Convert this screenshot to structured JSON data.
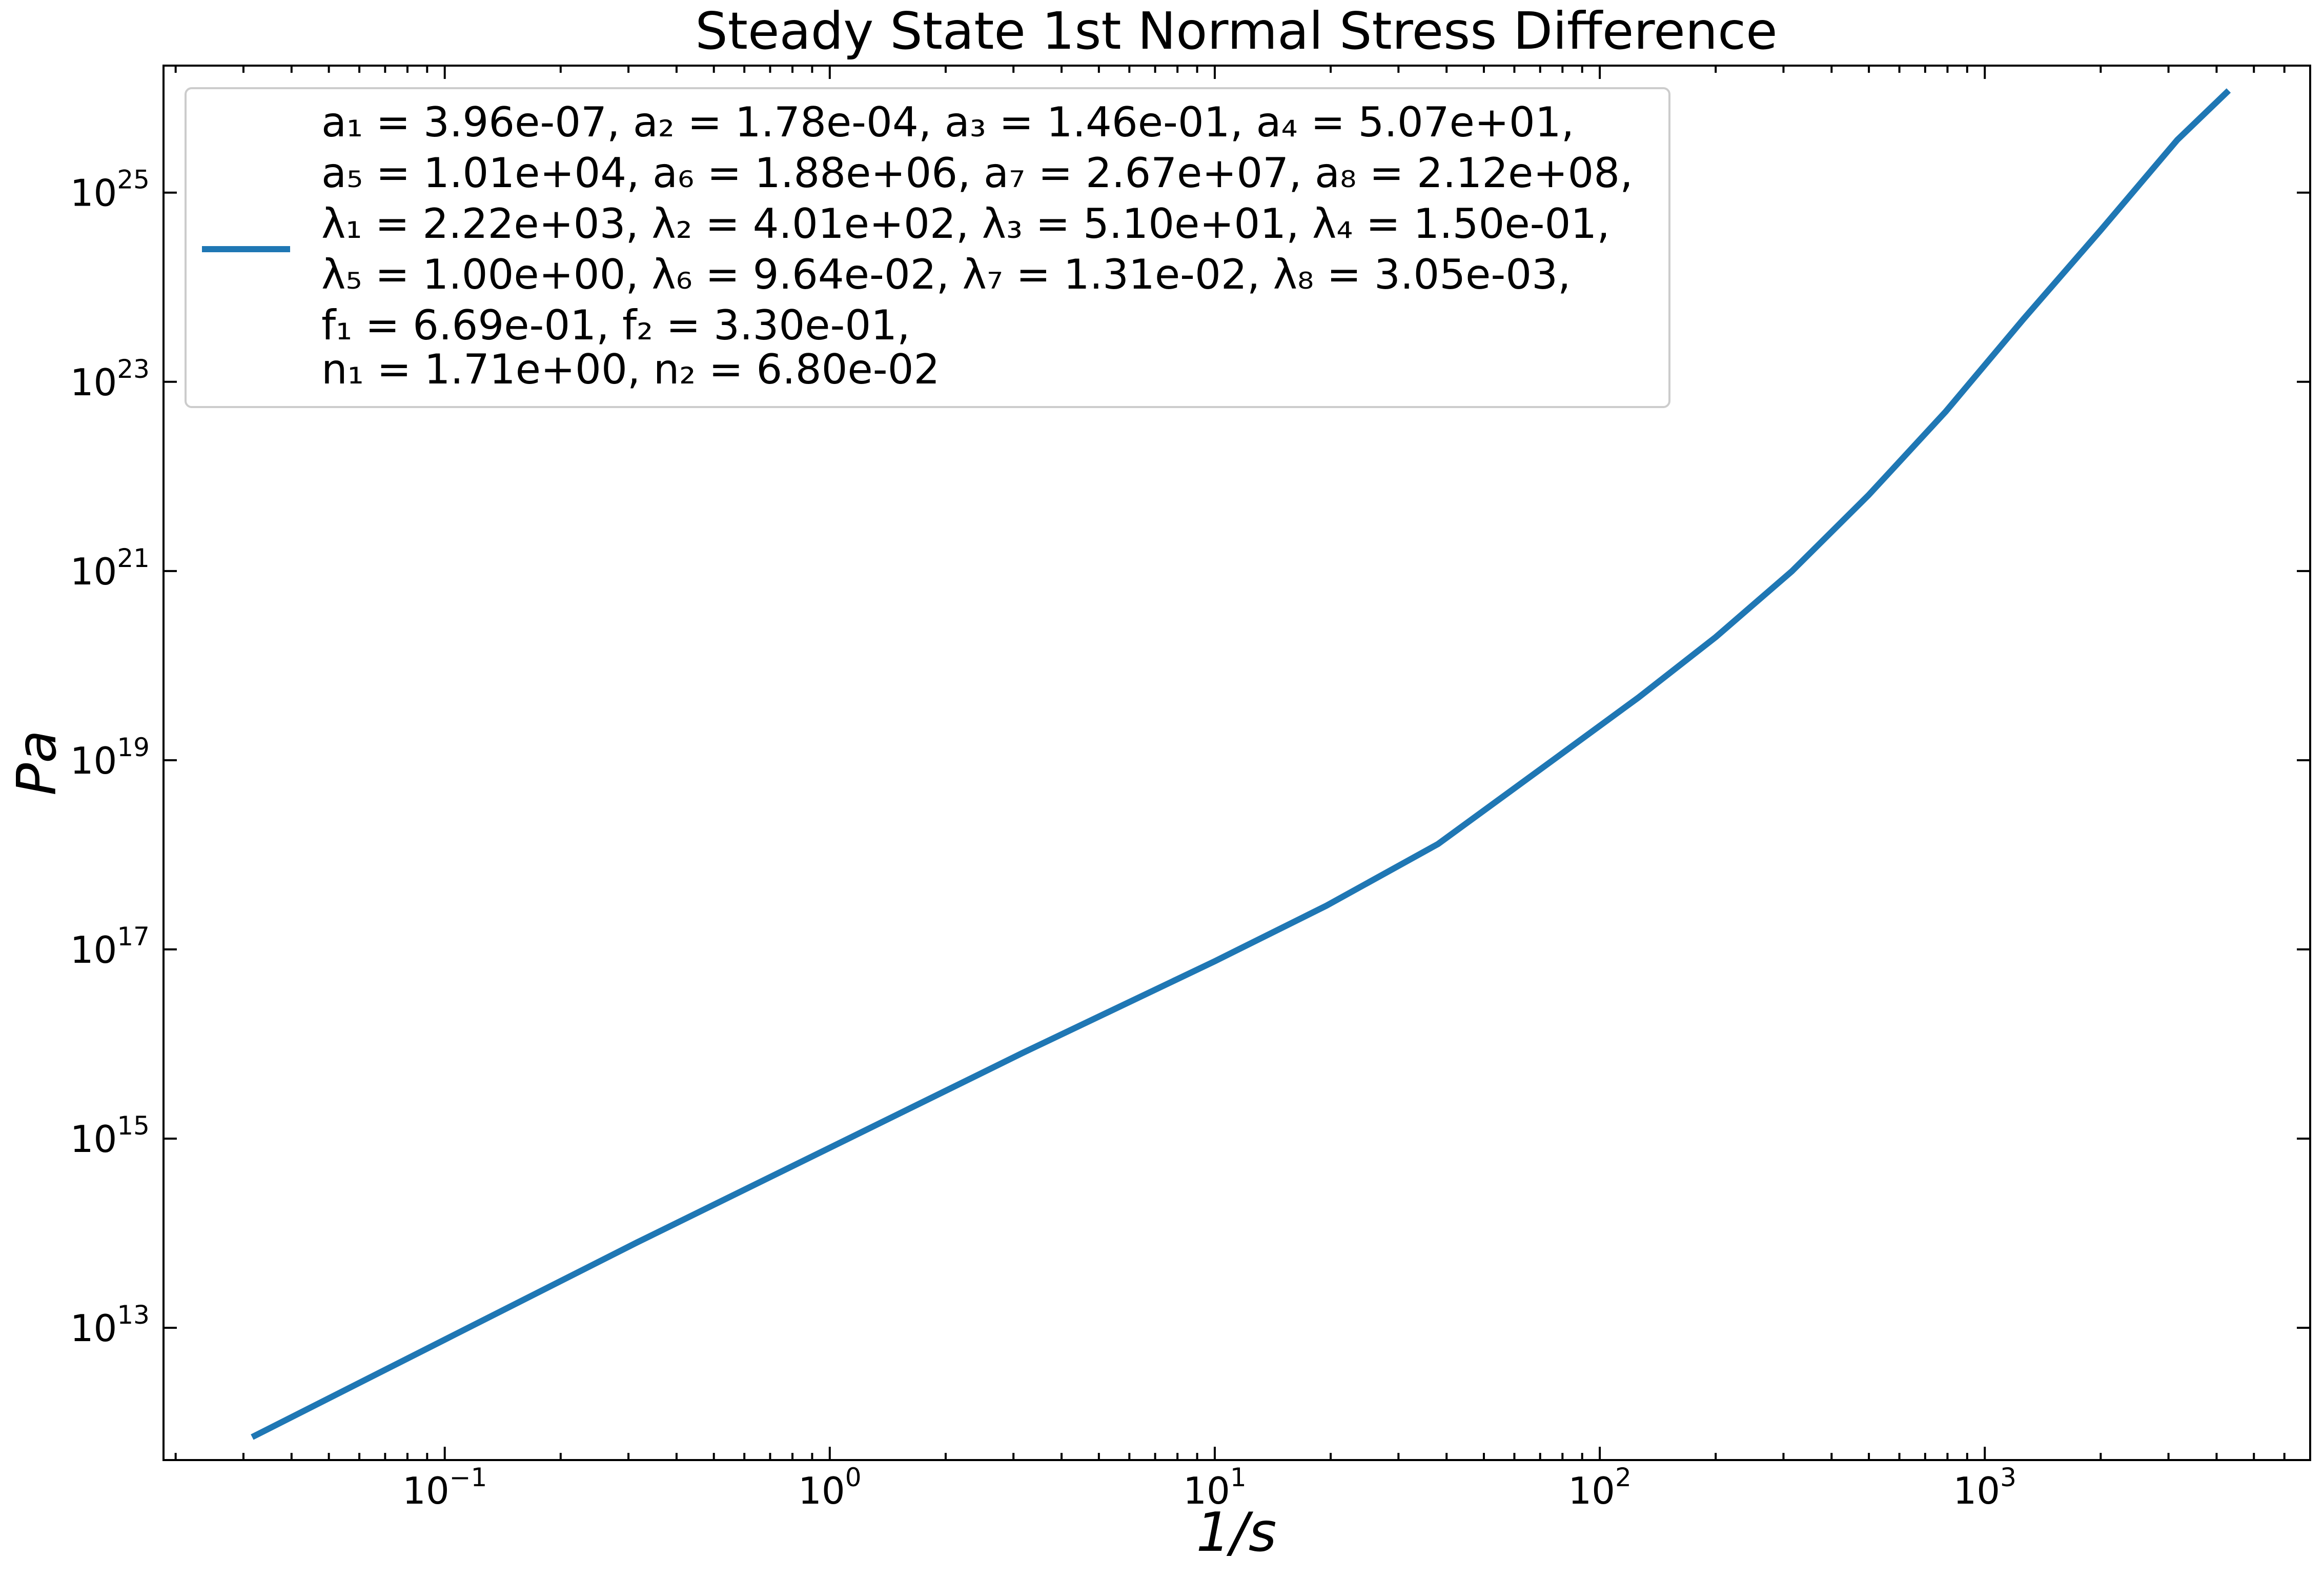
{
  "chart_data": {
    "type": "line",
    "title": "Steady State 1st Normal Stress Difference",
    "xlabel": "1/s",
    "ylabel": "Pa",
    "x_scale": "log",
    "y_scale": "log",
    "xlim": [
      0.0186,
      7000
    ],
    "ylim": [
      400000000000.0,
      2.2e+26
    ],
    "x_ticks": [
      {
        "value": 0.1,
        "base": "10",
        "exp": "−1"
      },
      {
        "value": 1,
        "base": "10",
        "exp": "0"
      },
      {
        "value": 10,
        "base": "10",
        "exp": "1"
      },
      {
        "value": 100,
        "base": "10",
        "exp": "2"
      },
      {
        "value": 1000,
        "base": "10",
        "exp": "3"
      }
    ],
    "y_ticks": [
      {
        "value": 10000000000000.0,
        "base": "10",
        "exp": "13"
      },
      {
        "value": 1000000000000000.0,
        "base": "10",
        "exp": "15"
      },
      {
        "value": 1e+17,
        "base": "10",
        "exp": "17"
      },
      {
        "value": 1e+19,
        "base": "10",
        "exp": "19"
      },
      {
        "value": 1e+21,
        "base": "10",
        "exp": "21"
      },
      {
        "value": 1e+23,
        "base": "10",
        "exp": "23"
      },
      {
        "value": 1e+25,
        "base": "10",
        "exp": "25"
      }
    ],
    "grid": false,
    "legend_position": "top-left",
    "series": [
      {
        "color": "#1f77b4",
        "legend_lines": [
          "a₁ = 3.96e-07, a₂ = 1.78e-04, a₃ = 1.46e-01, a₄ = 5.07e+01,",
          "a₅ = 1.01e+04, a₆ = 1.88e+06, a₇ = 2.67e+07, a₈ = 2.12e+08,",
          "λ₁ = 2.22e+03, λ₂ = 4.01e+02, λ₃ = 5.10e+01, λ₄ = 1.50e-01,",
          "λ₅ = 1.00e+00, λ₆ = 9.64e-02, λ₇ = 1.31e-02, λ₈ = 3.05e-03,",
          "f₁ = 6.69e-01, f₂ = 3.30e-01,",
          "n₁ = 1.71e+00, n₂ = 6.80e-02"
        ],
        "points": [
          {
            "x": 0.0316,
            "y": 700000000000.0
          },
          {
            "x": 0.1,
            "y": 7500000000000.0
          },
          {
            "x": 0.316,
            "y": 80000000000000.0
          },
          {
            "x": 1.0,
            "y": 800000000000000.0
          },
          {
            "x": 3.16,
            "y": 8000000000000000.0
          },
          {
            "x": 10.0,
            "y": 7.5e+16
          },
          {
            "x": 19.5,
            "y": 2.9e+17
          },
          {
            "x": 38.0,
            "y": 1.3e+18
          },
          {
            "x": 78.0,
            "y": 1.1e+19
          },
          {
            "x": 126.0,
            "y": 4.6e+19
          },
          {
            "x": 200.0,
            "y": 2e+20
          },
          {
            "x": 316.0,
            "y": 1e+21
          },
          {
            "x": 500.0,
            "y": 6.4e+21
          },
          {
            "x": 790.0,
            "y": 4.8e+22
          },
          {
            "x": 1260.0,
            "y": 4.6e+23
          },
          {
            "x": 2000.0,
            "y": 4e+24
          },
          {
            "x": 3160.0,
            "y": 3.6e+25
          },
          {
            "x": 4300.0,
            "y": 1.2e+26
          }
        ]
      }
    ]
  }
}
